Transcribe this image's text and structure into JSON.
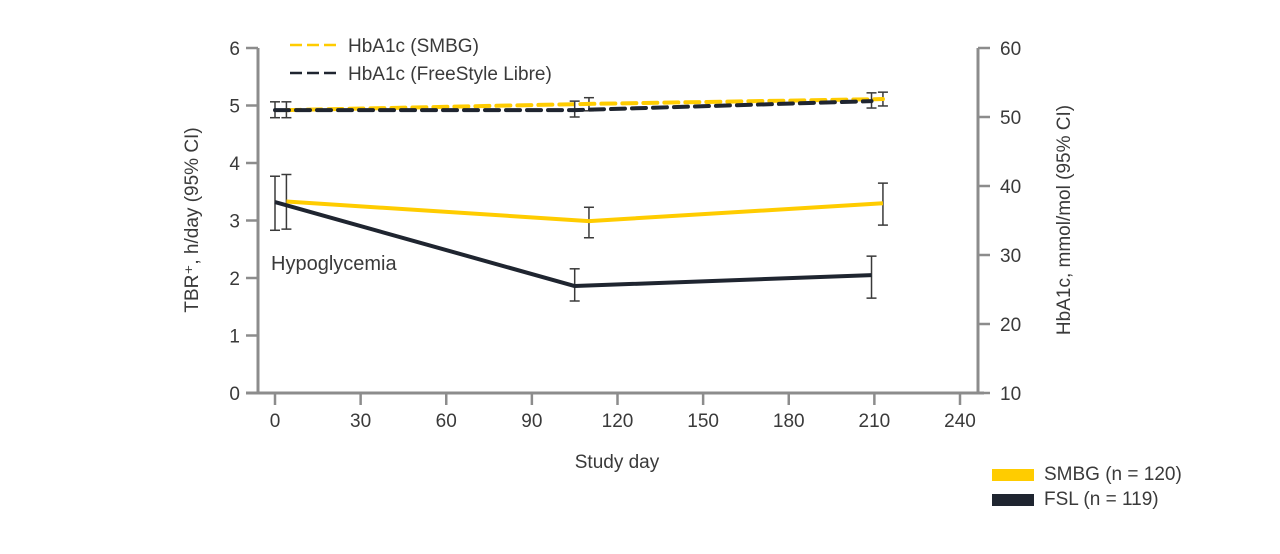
{
  "chart_data": {
    "type": "line",
    "title": "",
    "xlabel": "Study day",
    "ylabel_left": "TBR⁺, h/day (95% CI)",
    "ylabel_right": "HbA1c, mmol/mol (95% CI)",
    "xlim": [
      0,
      240
    ],
    "xticks": [
      0,
      30,
      60,
      90,
      120,
      150,
      180,
      210,
      240
    ],
    "ylim_left": [
      0,
      6
    ],
    "yticks_left": [
      0,
      1,
      2,
      3,
      4,
      5,
      6
    ],
    "ylim_right": [
      10,
      60
    ],
    "yticks_right": [
      10,
      20,
      30,
      40,
      50,
      60
    ],
    "grid": false,
    "annotations": [
      {
        "text": "Hypoglycemia",
        "x": 0,
        "y": 2.3
      }
    ],
    "series": [
      {
        "name": "SMBG (n = 120)",
        "metric": "TBR",
        "axis": "left",
        "style": "solid",
        "color": "#FFCC00",
        "x": [
          4,
          110,
          213
        ],
        "values": [
          3.33,
          2.99,
          3.3
        ],
        "ci_low": [
          2.85,
          2.7,
          2.92
        ],
        "ci_high": [
          3.8,
          3.23,
          3.65
        ]
      },
      {
        "name": "FSL (n = 119)",
        "metric": "TBR",
        "axis": "left",
        "style": "solid",
        "color": "#1F2530",
        "x": [
          0,
          105,
          209
        ],
        "values": [
          3.32,
          1.86,
          2.05
        ],
        "ci_low": [
          2.83,
          1.6,
          1.65
        ],
        "ci_high": [
          3.77,
          2.16,
          2.38
        ]
      },
      {
        "name": "HbA1c (SMBG)",
        "metric": "HbA1c",
        "axis": "right",
        "style": "dashed",
        "color": "#FFCC00",
        "x": [
          4,
          110,
          213
        ],
        "values": [
          51.0,
          51.9,
          52.6
        ],
        "ci_low": [
          49.9,
          50.9,
          51.6
        ],
        "ci_high": [
          52.2,
          52.8,
          53.6
        ]
      },
      {
        "name": "HbA1c (FreeStyle Libre)",
        "metric": "HbA1c",
        "axis": "right",
        "style": "dashed",
        "color": "#1F2530",
        "x": [
          0,
          105,
          209
        ],
        "values": [
          51.0,
          51.0,
          52.3
        ],
        "ci_low": [
          49.9,
          50.0,
          51.3
        ],
        "ci_high": [
          52.2,
          52.3,
          53.5
        ]
      }
    ],
    "legend_top": [
      {
        "label": "HbA1c (SMBG)",
        "color": "#FFCC00",
        "style": "dashed"
      },
      {
        "label": "HbA1c (FreeStyle Libre)",
        "color": "#1F2530",
        "style": "dashed"
      }
    ],
    "legend_bottom": [
      {
        "label": "SMBG (n = 120)",
        "color": "#FFCC00"
      },
      {
        "label": "FSL (n = 119)",
        "color": "#1F2530"
      }
    ]
  },
  "colors": {
    "smbg": "#FFCC00",
    "fsl": "#1F2530",
    "axis": "#8C8C8C",
    "errorbar": "#3a3a3a"
  }
}
